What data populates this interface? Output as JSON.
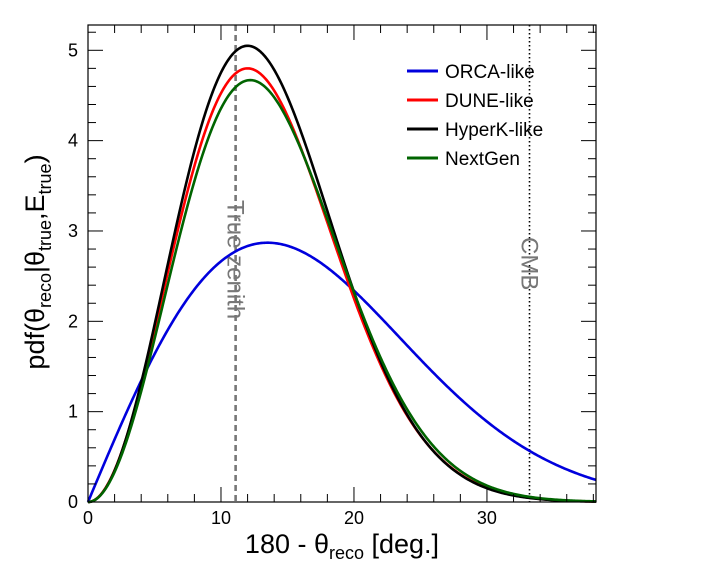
{
  "chart_data": {
    "type": "line",
    "xlabel": {
      "main": "180 - θ",
      "sub": "reco",
      "tail": " [deg.]"
    },
    "ylabel": {
      "parts": [
        {
          "t": "pdf(θ",
          "sub": false
        },
        {
          "t": "reco",
          "sub": true
        },
        {
          "t": "|θ",
          "sub": false
        },
        {
          "t": "true",
          "sub": true
        },
        {
          "t": ",E",
          "sub": false
        },
        {
          "t": "true",
          "sub": true
        },
        {
          "t": ")",
          "sub": false
        }
      ]
    },
    "xlim": [
      0,
      38.2
    ],
    "ylim": [
      0,
      5.28
    ],
    "xticks": [
      0,
      10,
      20,
      30
    ],
    "yticks": [
      0,
      1,
      2,
      3,
      4,
      5
    ],
    "series": [
      {
        "name": "ORCA-like",
        "color": "#0000dd",
        "shape": "rayleigh",
        "sigma": 13.6
      },
      {
        "name": "DUNE-like",
        "color": "#ff0000",
        "shape": "rayleigh",
        "sigma": 12.1
      },
      {
        "name": "HyperK-like",
        "color": "#000000",
        "shape": "rayleigh",
        "sigma": 12.0
      },
      {
        "name": "NextGen",
        "color": "#006400",
        "shape": "rayleigh",
        "sigma": 12.1
      }
    ],
    "annotations": [
      {
        "label": "True zenith",
        "x": 11.1,
        "style": "dashed",
        "color": "#777777"
      },
      {
        "label": "CMB",
        "x": 33.2,
        "style": "dotted",
        "color": "#000000"
      }
    ]
  }
}
